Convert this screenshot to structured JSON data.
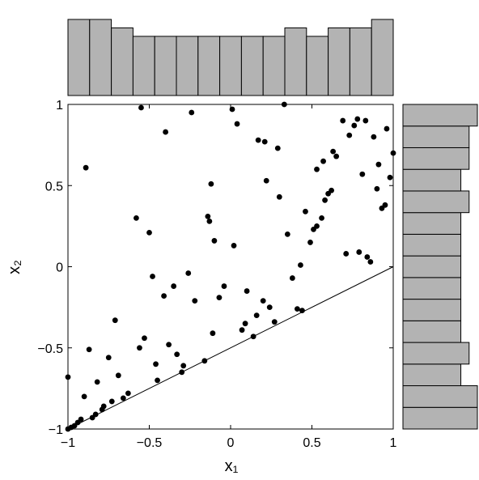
{
  "chart_data": [
    {
      "type": "scatter",
      "color": "#000000",
      "xlabel": "x₁",
      "ylabel": "x₂",
      "xlim": [
        -1,
        1
      ],
      "ylim": [
        -1,
        1
      ],
      "xticks": [
        {
          "value": -1,
          "label": "−1"
        },
        {
          "value": -0.5,
          "label": "−0.5"
        },
        0,
        0.5,
        1
      ],
      "yticks": [
        {
          "value": -1,
          "label": "−1"
        },
        {
          "value": -0.5,
          "label": "−0.5"
        },
        0,
        0.5,
        1
      ],
      "reference_line": {
        "x": [
          -1,
          1
        ],
        "y": [
          -1,
          0
        ]
      },
      "x": [
        -1,
        -0.89,
        -0.55,
        -0.24,
        -0.4,
        0.01,
        0.04,
        0.33,
        0.17,
        0.21,
        0.29,
        -0.12,
        0.22,
        0.3,
        -0.58,
        -0.14,
        -0.13,
        -0.5,
        -0.1,
        0.02,
        0.35,
        0.46,
        -0.48,
        -0.35,
        -0.41,
        -0.26,
        -0.22,
        -0.07,
        -0.04,
        0.1,
        0.2,
        0.16,
        0.24,
        0.38,
        0.43,
        0.49,
        0.51,
        0.53,
        0.56,
        0.58,
        0.6,
        0.62,
        0.53,
        0.57,
        0.63,
        0.65,
        0.69,
        0.73,
        0.76,
        0.78,
        0.83,
        0.88,
        0.91,
        0.96,
        1.0,
        0.81,
        0.9,
        0.93,
        0.95,
        0.98,
        0.71,
        0.79,
        0.84,
        0.86,
        0.41,
        0.44,
        0.27,
        0.14,
        0.09,
        0.07,
        -0.11,
        -0.16,
        -0.3,
        -0.29,
        -0.33,
        -0.38,
        -0.46,
        -0.45,
        -0.53,
        -0.56,
        -0.71,
        -0.75,
        -0.69,
        -0.66,
        -0.63,
        -0.82,
        -0.87,
        -0.9,
        -0.73,
        -0.78,
        -0.79,
        -0.83,
        -0.85,
        -0.92,
        -0.94,
        -0.96,
        -0.98,
        -1
      ],
      "y": [
        -0.68,
        0.61,
        0.98,
        0.95,
        0.83,
        0.97,
        0.88,
        1.0,
        0.78,
        0.77,
        0.73,
        0.51,
        0.53,
        0.43,
        0.3,
        0.31,
        0.28,
        0.21,
        0.16,
        0.13,
        0.2,
        0.34,
        -0.06,
        -0.12,
        -0.18,
        -0.04,
        -0.21,
        -0.19,
        -0.12,
        -0.15,
        -0.21,
        -0.3,
        -0.25,
        -0.07,
        0.01,
        0.15,
        0.23,
        0.25,
        0.3,
        0.41,
        0.45,
        0.47,
        0.6,
        0.65,
        0.71,
        0.68,
        0.9,
        0.81,
        0.87,
        0.91,
        0.9,
        0.8,
        0.63,
        0.85,
        0.7,
        0.57,
        0.48,
        0.36,
        0.38,
        0.55,
        0.08,
        0.09,
        0.06,
        0.03,
        -0.26,
        -0.27,
        -0.34,
        -0.43,
        -0.35,
        -0.39,
        -0.41,
        -0.58,
        -0.65,
        -0.61,
        -0.54,
        -0.48,
        -0.6,
        -0.7,
        -0.44,
        -0.5,
        -0.33,
        -0.56,
        -0.67,
        -0.81,
        -0.78,
        -0.71,
        -0.51,
        -0.8,
        -0.83,
        -0.86,
        -0.88,
        -0.91,
        -0.93,
        -0.94,
        -0.96,
        -0.98,
        -0.99,
        -1
      ]
    },
    {
      "type": "histogram",
      "orientation": "vertical",
      "color": "#b3b3b3",
      "bins": [
        -1,
        -0.8667,
        -0.7333,
        -0.6,
        -0.4667,
        -0.3333,
        -0.2,
        -0.0667,
        0.0667,
        0.2,
        0.3333,
        0.4667,
        0.6,
        0.7333,
        0.8667,
        1
      ],
      "counts": [
        9,
        9,
        8,
        7,
        7,
        7,
        7,
        7,
        7,
        7,
        8,
        7,
        8,
        8,
        9
      ]
    },
    {
      "type": "histogram",
      "orientation": "horizontal",
      "color": "#b3b3b3",
      "bins": [
        -1,
        -0.8667,
        -0.7333,
        -0.6,
        -0.4667,
        -0.3333,
        -0.2,
        -0.0667,
        0.0667,
        0.2,
        0.3333,
        0.4667,
        0.6,
        0.7333,
        0.8667,
        1
      ],
      "counts": [
        9,
        9,
        7,
        8,
        7,
        7,
        7,
        7,
        7,
        7,
        8,
        7,
        8,
        8,
        9
      ]
    }
  ]
}
